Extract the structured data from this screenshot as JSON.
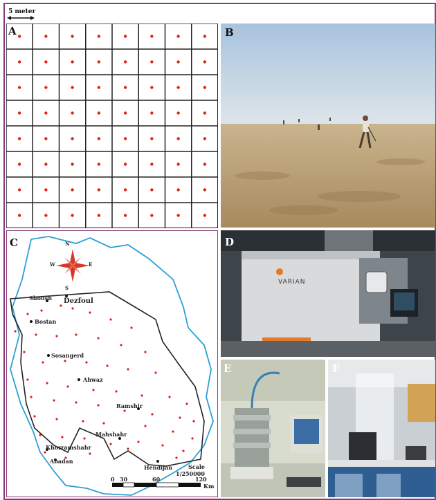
{
  "figure": {
    "scale_bar_label": "5 meter",
    "panels": {
      "a": "A",
      "b": "B",
      "c": "C",
      "d": "D",
      "e": "E",
      "f": "F"
    }
  },
  "grid": {
    "rows": 8,
    "cols": 8,
    "point_color": "#e0201a"
  },
  "map": {
    "compass": {
      "n": "N",
      "s": "S",
      "e": "E",
      "w": "W"
    },
    "cities": {
      "shoush": "Shoush",
      "dezfoul": "Dezfoul",
      "bostan": "Bostan",
      "sosangerd": "Sosangerd",
      "ahwaz": "Ahwaz",
      "ramshir": "Ramshir",
      "mahshahr": "Mahshahr",
      "khorramshahr": "Khorramshahr",
      "abadan": "Abadan",
      "hendijan": "Hendijan"
    },
    "scale_title": "Scale",
    "scale_ratio": "1/250000",
    "scale_ticks": [
      "0",
      "30",
      "60",
      "120"
    ],
    "scale_unit": "Km",
    "boundary_color": "#2a9fd8",
    "sample_color": "#e0201a"
  },
  "instrument": {
    "brand": "VARIAN"
  }
}
